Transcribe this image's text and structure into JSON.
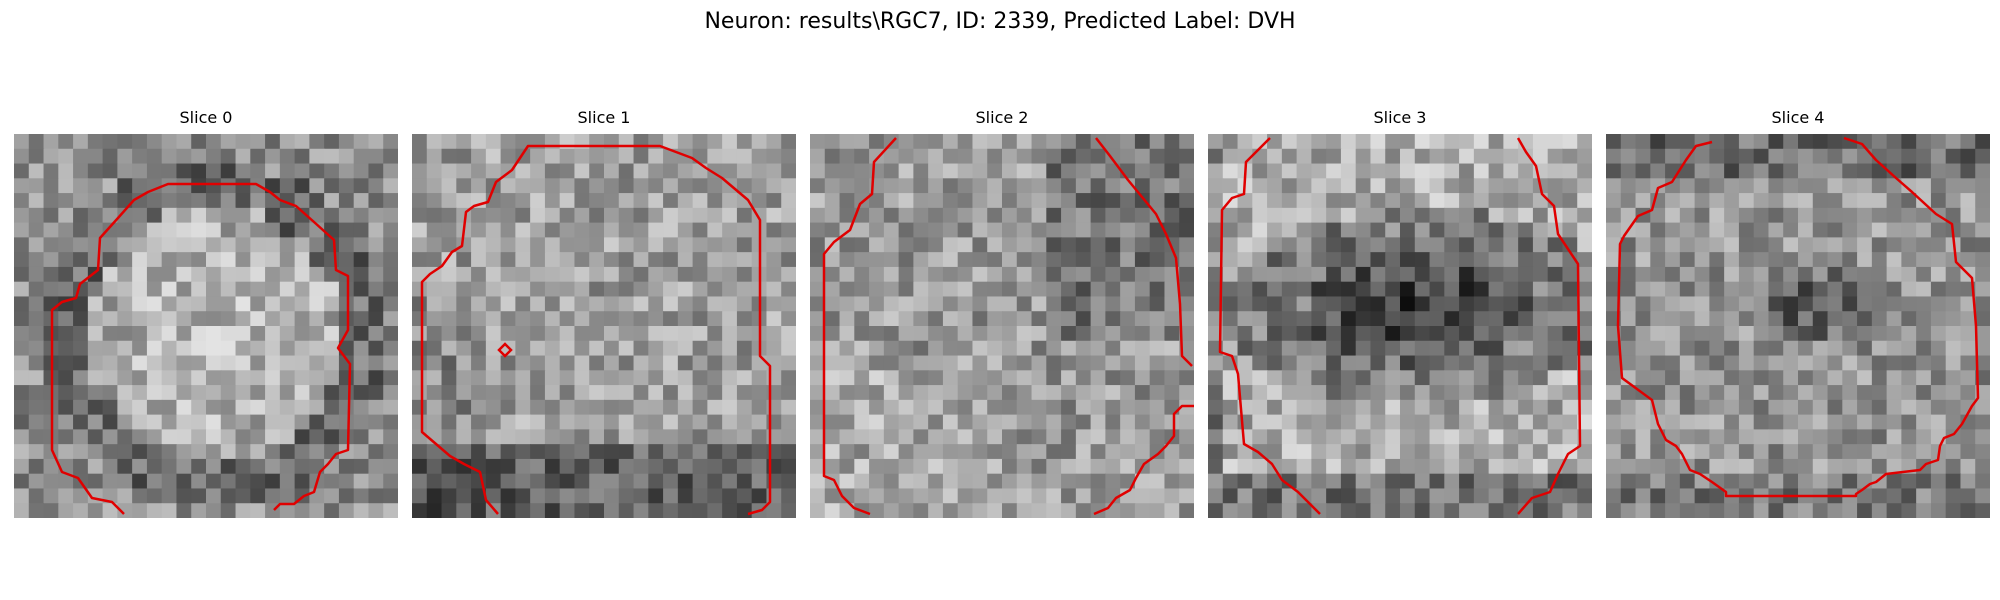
{
  "figure": {
    "title": "Neuron: results\\RGC7, ID: 2339, Predicted Label: DVH"
  },
  "contour_color": "#e00000",
  "panels": [
    {
      "title": "Slice 0"
    },
    {
      "title": "Slice 1"
    },
    {
      "title": "Slice 2"
    },
    {
      "title": "Slice 3"
    },
    {
      "title": "Slice 4"
    }
  ]
}
